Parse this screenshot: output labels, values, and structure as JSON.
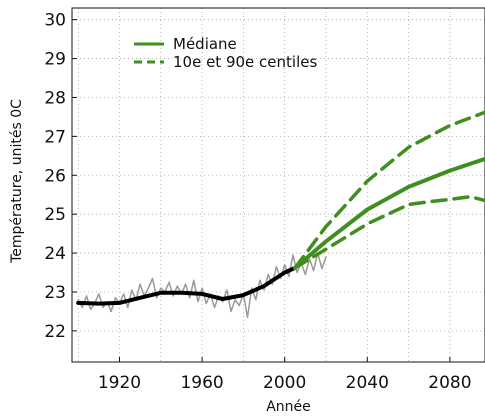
{
  "chart_data": {
    "type": "line",
    "title": "",
    "xlabel": "Année",
    "ylabel": "Température, unités 0C",
    "xlim": [
      1897,
      2097
    ],
    "ylim": [
      21.2,
      30.3
    ],
    "xticks": [
      1920,
      1960,
      2000,
      2040,
      2080
    ],
    "yticks": [
      22,
      23,
      24,
      25,
      26,
      27,
      28,
      29,
      30
    ],
    "grid": true,
    "legend_position": "top-left",
    "legend": [
      {
        "label": "Médiane",
        "style": "solid",
        "color": "#3f8f1f"
      },
      {
        "label": "10e et 90e centiles",
        "style": "dashed",
        "color": "#3f8f1f"
      }
    ],
    "series": [
      {
        "name": "Médiane",
        "color": "#3f8f1f",
        "style": "solid",
        "x": [
          2005,
          2020,
          2040,
          2060,
          2080,
          2097
        ],
        "y": [
          23.62,
          24.3,
          25.12,
          25.7,
          26.12,
          26.42
        ]
      },
      {
        "name": "10e et 90e centiles",
        "color": "#3f8f1f",
        "style": "dashed",
        "x": [
          2005,
          2020,
          2040,
          2060,
          2080,
          2097
        ],
        "y": [
          23.62,
          24.68,
          25.85,
          26.72,
          27.28,
          27.62
        ]
      },
      {
        "name": "10e et 90e centiles",
        "color": "#3f8f1f",
        "style": "dashed",
        "x": [
          2005,
          2020,
          2040,
          2060,
          2070,
          2080,
          2090,
          2097
        ],
        "y": [
          23.62,
          24.1,
          24.75,
          25.25,
          25.32,
          25.38,
          25.45,
          25.35
        ]
      },
      {
        "color": "#999999",
        "style": "solid",
        "x": [
          1900,
          1902,
          1904,
          1906,
          1908,
          1910,
          1912,
          1914,
          1916,
          1918,
          1920,
          1922,
          1924,
          1926,
          1928,
          1930,
          1932,
          1934,
          1936,
          1938,
          1940,
          1942,
          1944,
          1946,
          1948,
          1950,
          1952,
          1954,
          1956,
          1958,
          1960,
          1962,
          1964,
          1966,
          1968,
          1970,
          1972,
          1974,
          1976,
          1978,
          1980,
          1982,
          1984,
          1986,
          1988,
          1990,
          1992,
          1994,
          1996,
          1998,
          2000,
          2002,
          2004,
          2006,
          2008,
          2010,
          2012,
          2014,
          2016,
          2018,
          2020
        ],
        "y": [
          22.8,
          22.6,
          22.9,
          22.55,
          22.7,
          22.95,
          22.6,
          22.75,
          22.5,
          22.85,
          22.7,
          22.95,
          22.6,
          23.05,
          22.8,
          23.2,
          22.9,
          23.1,
          23.35,
          22.85,
          23.1,
          23.0,
          23.25,
          22.9,
          23.15,
          22.95,
          23.2,
          22.85,
          23.3,
          22.75,
          23.1,
          22.7,
          22.95,
          22.6,
          22.9,
          22.75,
          23.05,
          22.5,
          22.8,
          22.65,
          22.95,
          22.35,
          23.1,
          22.8,
          23.3,
          23.05,
          23.45,
          23.2,
          23.65,
          23.35,
          23.7,
          23.4,
          23.95,
          23.5,
          23.75,
          23.45,
          23.85,
          23.55,
          24.0,
          23.6,
          23.9
        ]
      },
      {
        "color": "#000000",
        "style": "solid",
        "x": [
          1900,
          1910,
          1920,
          1930,
          1940,
          1950,
          1960,
          1970,
          1980,
          1990,
          2000,
          2005
        ],
        "y": [
          22.72,
          22.7,
          22.72,
          22.85,
          22.98,
          22.98,
          22.95,
          22.82,
          22.92,
          23.15,
          23.5,
          23.62
        ]
      }
    ]
  }
}
